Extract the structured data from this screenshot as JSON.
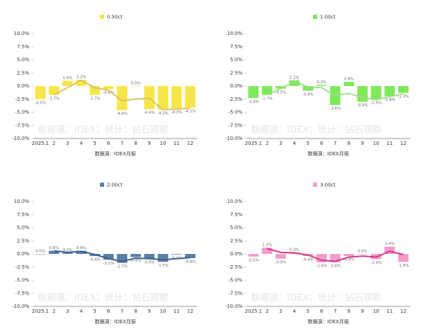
{
  "chart_data": [
    {
      "type": "bar",
      "series": [
        {
          "name": "0.50ct",
          "color": "#f7e64a",
          "values": [
            -2.5,
            -1.7,
            1.0,
            1.2,
            -1.7,
            -0.6,
            -4.6,
            0.0,
            -4.4,
            -4.5,
            -4.3,
            -4.1
          ],
          "value_labels": [
            "-2.5%",
            "-1.7%",
            "1.0%",
            "1.2%",
            "-1.7%",
            "-0.6%",
            "-4.6%",
            "0.0%",
            "-4.4%",
            "-4.5%",
            "-4.3%",
            "-4.1%"
          ]
        }
      ],
      "trend": {
        "color": "#d8c363",
        "values": [
          null,
          -1.7,
          -0.3,
          1.1,
          -0.3,
          -0.8,
          -2.8,
          -2.5,
          -2.3,
          -4.5,
          -4.4,
          -4.2
        ]
      },
      "categories": [
        "2025.1",
        "2",
        "3",
        "4",
        "5",
        "6",
        "7",
        "8",
        "9",
        "10",
        "11",
        "12"
      ],
      "x_label": "数据源：IDEX月报",
      "watermark": "数据源：IDEX；统计：钻石观察",
      "ylim": [
        -10,
        10
      ],
      "yticks": [
        {
          "value": -10,
          "label": "-10.0%"
        },
        {
          "value": -7.5,
          "label": "-7.5%"
        },
        {
          "value": -5,
          "label": "-5.0%"
        },
        {
          "value": -2.5,
          "label": "-2.5%"
        },
        {
          "value": 0,
          "label": "0.0%"
        },
        {
          "value": 2.5,
          "label": "2.5%"
        },
        {
          "value": 5,
          "label": "5.0%"
        },
        {
          "value": 7.5,
          "label": "7.5%"
        },
        {
          "value": 10,
          "label": "10.0%"
        }
      ],
      "grid": false
    },
    {
      "type": "bar",
      "series": [
        {
          "name": "1.00ct",
          "color": "#7ee95b",
          "values": [
            -2.3,
            -1.7,
            -0.5,
            1.1,
            -0.9,
            0.2,
            -3.6,
            0.8,
            -3.0,
            -2.5,
            -1.9,
            -1.3
          ],
          "value_labels": [
            "-2.3%",
            "-1.7%",
            "-0.5%",
            "1.1%",
            "-0.9%",
            "0.2%",
            "-3.6%",
            "0.8%",
            "-3.0%",
            "-2.5%",
            "-1.9%",
            "-1.3%"
          ]
        }
      ],
      "trend": {
        "color": "#a3de86",
        "values": [
          null,
          -1.7,
          -0.5,
          0.9,
          -0.2,
          -0.3,
          -1.8,
          -1.4,
          -2.2,
          -2.6,
          -2.0,
          -1.5
        ]
      },
      "categories": [
        "2025.1",
        "2",
        "3",
        "4",
        "5",
        "6",
        "7",
        "8",
        "9",
        "10",
        "11",
        "12"
      ],
      "x_label": "数据源：IDEX月报",
      "watermark": "数据源：IDEX；统计：钻石观察",
      "ylim": [
        -10,
        10
      ],
      "yticks": [
        {
          "value": -10,
          "label": "-10.0%"
        },
        {
          "value": -7.5,
          "label": "-7.5%"
        },
        {
          "value": -5,
          "label": "-5.0%"
        },
        {
          "value": -2.5,
          "label": "-2.5%"
        },
        {
          "value": 0,
          "label": "0.0%"
        },
        {
          "value": 2.5,
          "label": "2.5%"
        },
        {
          "value": 5,
          "label": "5.0%"
        },
        {
          "value": 7.5,
          "label": "7.5%"
        },
        {
          "value": 10,
          "label": "10.0%"
        }
      ],
      "grid": false
    },
    {
      "type": "bar",
      "series": [
        {
          "name": "2.00ct",
          "color": "#5a7fa9",
          "values": [
            0.0,
            0.6,
            0.2,
            0.6,
            -0.4,
            -1.1,
            -1.7,
            -0.6,
            -0.9,
            -1.5,
            -0.1,
            -0.8
          ],
          "value_labels": [
            "0.0%",
            "0.6%",
            "0.2%",
            "0.6%",
            "-0.4%",
            "-1.1%",
            "-1.7%",
            "-0.6%",
            "-0.9%",
            "-1.5%",
            "-0.1%",
            "-0.8%"
          ]
        }
      ],
      "trend": {
        "color": "#3b6190",
        "values": [
          null,
          0.6,
          0.3,
          0.5,
          -0.1,
          -0.9,
          -1.4,
          -0.8,
          -0.9,
          -1.1,
          -0.9,
          -0.7
        ]
      },
      "categories": [
        "2025.1",
        "2",
        "3",
        "4",
        "5",
        "6",
        "7",
        "8",
        "9",
        "10",
        "11",
        "12"
      ],
      "x_label": "数据源：IDEX月报",
      "watermark": "数据源：IDEX；统计：钻石观察",
      "ylim": [
        -10,
        10
      ],
      "yticks": [
        {
          "value": -10,
          "label": "-10.0%"
        },
        {
          "value": -7.5,
          "label": "-7.5%"
        },
        {
          "value": -5,
          "label": "-5.0%"
        },
        {
          "value": -2.5,
          "label": "-2.5%"
        },
        {
          "value": 0,
          "label": "0.0%"
        },
        {
          "value": 2.5,
          "label": "2.5%"
        },
        {
          "value": 5,
          "label": "5.0%"
        },
        {
          "value": 7.5,
          "label": "7.5%"
        },
        {
          "value": 10,
          "label": "10.0%"
        }
      ],
      "grid": false
    },
    {
      "type": "bar",
      "series": [
        {
          "name": "3.00ct",
          "color": "#f39bcb",
          "values": [
            -0.5,
            1.2,
            -0.9,
            0.3,
            -0.4,
            -1.6,
            -1.6,
            -0.4,
            0.0,
            -1.0,
            1.4,
            -1.5
          ],
          "value_labels": [
            "-0.5%",
            "1.2%",
            "-0.9%",
            "0.3%",
            "-0.4%",
            "-1.6%",
            "-1.6%",
            "-0.4%",
            "0.0%",
            "-1.0%",
            "1.4%",
            "-1.5%"
          ]
        }
      ],
      "trend": {
        "color": "#d1388a",
        "values": [
          null,
          1.0,
          0.3,
          0.2,
          -0.2,
          -1.2,
          -1.4,
          -0.6,
          -0.4,
          -0.6,
          0.5,
          -0.1
        ]
      },
      "categories": [
        "2025.1",
        "2",
        "3",
        "4",
        "5",
        "6",
        "7",
        "8",
        "9",
        "10",
        "11",
        "12"
      ],
      "x_label": "数据源：IDEX月报",
      "watermark": "数据源：IDEX；统计：钻石观察",
      "ylim": [
        -10,
        10
      ],
      "yticks": [
        {
          "value": -10,
          "label": "-10.0%"
        },
        {
          "value": -7.5,
          "label": "-7.5%"
        },
        {
          "value": -5,
          "label": "-5.0%"
        },
        {
          "value": -2.5,
          "label": "-2.5%"
        },
        {
          "value": 0,
          "label": "0.0%"
        },
        {
          "value": 2.5,
          "label": "2.5%"
        },
        {
          "value": 5,
          "label": "5.0%"
        },
        {
          "value": 7.5,
          "label": "7.5%"
        },
        {
          "value": 10,
          "label": "10.0%"
        }
      ],
      "grid": false
    }
  ]
}
